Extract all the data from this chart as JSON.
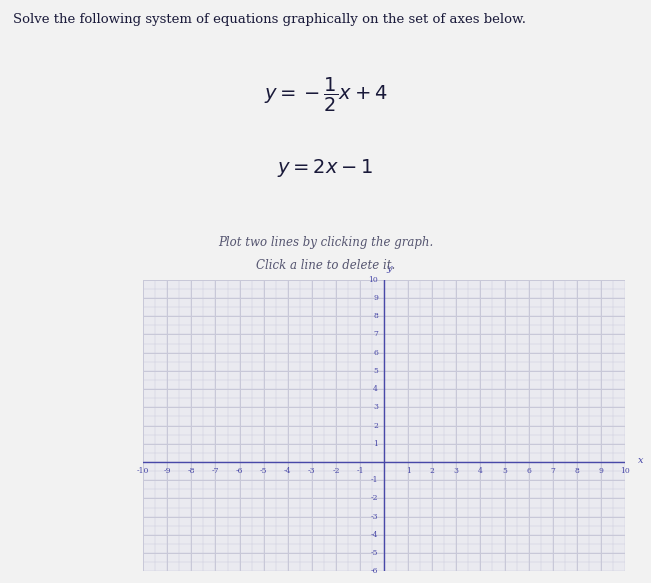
{
  "title_line1": "Solve the following system of equations graphically on the set of axes below.",
  "eq1_text": "$y = -\\dfrac{1}{2}x + 4$",
  "eq2_text": "$y = 2x - 1$",
  "instruction1": "Plot two lines by clicking the graph.",
  "instruction2": "Click a line to delete it.",
  "x_label": "x",
  "y_label": "y",
  "xlim": [
    -10,
    10
  ],
  "ylim": [
    -6,
    10
  ],
  "x_ticks": [
    -10,
    -9,
    -8,
    -7,
    -6,
    -5,
    -4,
    -3,
    -2,
    -1,
    1,
    2,
    3,
    4,
    5,
    6,
    7,
    8,
    9,
    10
  ],
  "y_ticks_pos": [
    1,
    2,
    3,
    4,
    5,
    6,
    7,
    8,
    9,
    10
  ],
  "y_ticks_neg": [
    -1,
    -2,
    -3,
    -4,
    -5,
    -6
  ],
  "background_color": "#eaeaf0",
  "axis_color": "#4848a8",
  "grid_color": "#c8c8d8",
  "text_color": "#1a1a3a",
  "figure_bg": "#f2f2f2",
  "header_bg": "#f2f2f2"
}
